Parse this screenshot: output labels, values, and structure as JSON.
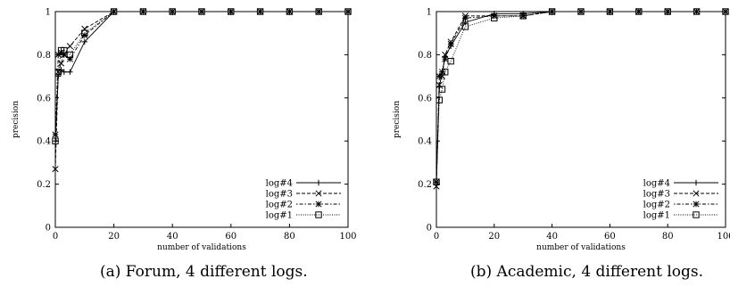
{
  "captions": [
    "(a) Forum, 4 different logs.",
    "(b) Academic, 4 different logs."
  ],
  "chart_data": [
    {
      "type": "line",
      "title": "",
      "xlabel": "number of validations",
      "ylabel": "precision",
      "xlim": [
        0,
        100
      ],
      "ylim": [
        0,
        1
      ],
      "xticks": [
        0,
        20,
        40,
        60,
        80,
        100
      ],
      "yticks": [
        0,
        0.2,
        0.4,
        0.6,
        0.8,
        1
      ],
      "grid": false,
      "legend_position": "bottom-right",
      "series": [
        {
          "name": "log#4",
          "marker": "plus",
          "dash": "solid",
          "x": [
            0,
            1,
            2,
            3,
            5,
            10,
            20,
            30,
            40,
            50,
            60,
            70,
            80,
            90,
            100
          ],
          "y": [
            0.4,
            0.7,
            0.73,
            0.72,
            0.72,
            0.86,
            1,
            1,
            1,
            1,
            1,
            1,
            1,
            1,
            1
          ]
        },
        {
          "name": "log#3",
          "marker": "cross",
          "dash": "dashed",
          "x": [
            0,
            1,
            2,
            3,
            5,
            10,
            20,
            30,
            40,
            50,
            60,
            70,
            80,
            90,
            100
          ],
          "y": [
            0.27,
            0.72,
            0.76,
            0.8,
            0.84,
            0.92,
            1,
            1,
            1,
            1,
            1,
            1,
            1,
            1,
            1
          ]
        },
        {
          "name": "log#2",
          "marker": "star",
          "dash": "dotted-dash",
          "x": [
            0,
            1,
            2,
            3,
            5,
            10,
            20,
            30,
            40,
            50,
            60,
            70,
            80,
            90,
            100
          ],
          "y": [
            0.43,
            0.8,
            0.81,
            0.8,
            0.78,
            0.89,
            1,
            1,
            1,
            1,
            1,
            1,
            1,
            1,
            1
          ]
        },
        {
          "name": "log#1",
          "marker": "square",
          "dash": "dotted",
          "x": [
            0,
            1,
            2,
            3,
            5,
            10,
            20,
            30,
            40,
            50,
            60,
            70,
            80,
            90,
            100
          ],
          "y": [
            0.4,
            0.72,
            0.82,
            0.82,
            0.8,
            0.9,
            1,
            1,
            1,
            1,
            1,
            1,
            1,
            1,
            1
          ]
        }
      ]
    },
    {
      "type": "line",
      "title": "",
      "xlabel": "number of validations",
      "ylabel": "precision",
      "xlim": [
        0,
        100
      ],
      "ylim": [
        0,
        1
      ],
      "xticks": [
        0,
        20,
        40,
        60,
        80,
        100
      ],
      "yticks": [
        0,
        0.2,
        0.4,
        0.6,
        0.8,
        1
      ],
      "grid": false,
      "legend_position": "bottom-right",
      "series": [
        {
          "name": "log#4",
          "marker": "plus",
          "dash": "solid",
          "x": [
            0,
            1,
            2,
            3,
            5,
            10,
            20,
            30,
            40,
            50,
            60,
            70,
            80,
            90,
            100
          ],
          "y": [
            0.21,
            0.65,
            0.72,
            0.79,
            0.84,
            0.95,
            0.99,
            0.99,
            1,
            1,
            1,
            1,
            1,
            1,
            1
          ]
        },
        {
          "name": "log#3",
          "marker": "cross",
          "dash": "dashed",
          "x": [
            0,
            1,
            2,
            3,
            5,
            10,
            20,
            30,
            40,
            50,
            60,
            70,
            80,
            90,
            100
          ],
          "y": [
            0.19,
            0.66,
            0.7,
            0.8,
            0.86,
            0.98,
            0.98,
            0.98,
            1,
            1,
            1,
            1,
            1,
            1,
            1
          ]
        },
        {
          "name": "log#2",
          "marker": "star",
          "dash": "dotted-dash",
          "x": [
            0,
            1,
            2,
            3,
            5,
            10,
            20,
            30,
            40,
            50,
            60,
            70,
            80,
            90,
            100
          ],
          "y": [
            0.21,
            0.7,
            0.72,
            0.78,
            0.85,
            0.97,
            0.98,
            0.98,
            1,
            1,
            1,
            1,
            1,
            1,
            1
          ]
        },
        {
          "name": "log#1",
          "marker": "square",
          "dash": "dotted",
          "x": [
            0,
            1,
            2,
            3,
            5,
            10,
            20,
            30,
            40,
            50,
            60,
            70,
            80,
            90,
            100
          ],
          "y": [
            0.21,
            0.59,
            0.64,
            0.72,
            0.77,
            0.93,
            0.97,
            0.98,
            1,
            1,
            1,
            1,
            1,
            1,
            1
          ]
        }
      ]
    }
  ]
}
